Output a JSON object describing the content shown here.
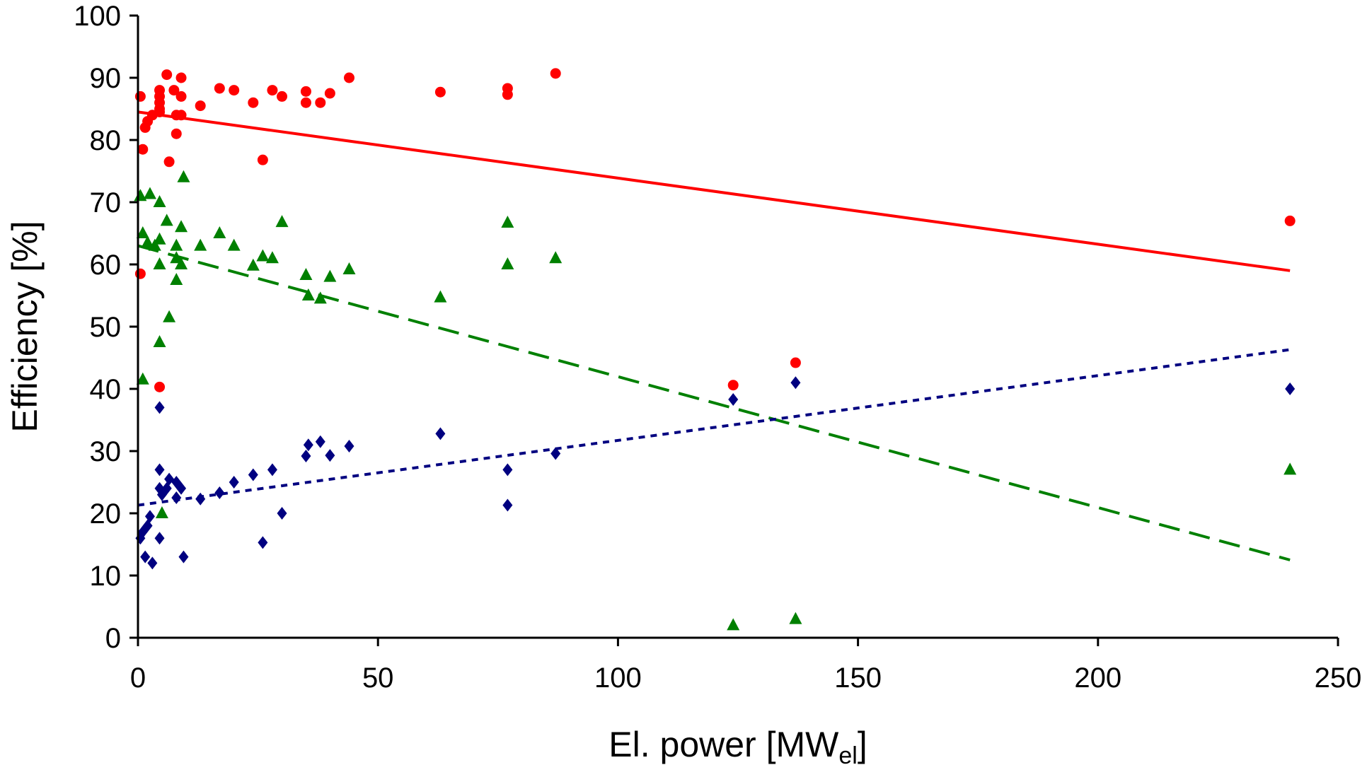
{
  "chart_data": {
    "type": "scatter",
    "title": "",
    "xlabel_main": "El. power [MW",
    "xlabel_sub": "el",
    "xlabel_end": "]",
    "ylabel": "Efficiency [%]",
    "xlim": [
      0,
      250
    ],
    "ylim": [
      0,
      100
    ],
    "x_ticks": [
      0,
      50,
      100,
      150,
      200,
      250
    ],
    "y_ticks": [
      0,
      10,
      20,
      30,
      40,
      50,
      60,
      70,
      80,
      90,
      100
    ],
    "grid": false,
    "legend": "none",
    "series": [
      {
        "marker": "circle",
        "color": "#ff0000",
        "points": [
          [
            0.5,
            87
          ],
          [
            1,
            78.5
          ],
          [
            0.5,
            58.5
          ],
          [
            1.5,
            82
          ],
          [
            2,
            83
          ],
          [
            3,
            84
          ],
          [
            4.5,
            88
          ],
          [
            4.5,
            87
          ],
          [
            4.5,
            86
          ],
          [
            4.5,
            85
          ],
          [
            4.5,
            84.5
          ],
          [
            4.5,
            40.3
          ],
          [
            6,
            90.5
          ],
          [
            6.5,
            76.5
          ],
          [
            7.5,
            88
          ],
          [
            8,
            84
          ],
          [
            8,
            81
          ],
          [
            9,
            90
          ],
          [
            9,
            87
          ],
          [
            9,
            84
          ],
          [
            13,
            85.5
          ],
          [
            17,
            88.3
          ],
          [
            20,
            88
          ],
          [
            24,
            86
          ],
          [
            26,
            76.8
          ],
          [
            28,
            88
          ],
          [
            30,
            87
          ],
          [
            35,
            87.8
          ],
          [
            35,
            86
          ],
          [
            38,
            86
          ],
          [
            40,
            87.5
          ],
          [
            44,
            90
          ],
          [
            63,
            87.7
          ],
          [
            77,
            88.3
          ],
          [
            77,
            87.3
          ],
          [
            87,
            90.7
          ],
          [
            124,
            40.6
          ],
          [
            137,
            44.2
          ],
          [
            240,
            67
          ]
        ]
      },
      {
        "marker": "triangle",
        "color": "#008000",
        "points": [
          [
            0.5,
            71
          ],
          [
            1,
            65
          ],
          [
            1,
            41.5
          ],
          [
            2,
            63.5
          ],
          [
            2.5,
            71.3
          ],
          [
            3.5,
            63
          ],
          [
            4.5,
            70
          ],
          [
            4.5,
            64
          ],
          [
            4.5,
            60
          ],
          [
            4.5,
            47.5
          ],
          [
            5,
            20
          ],
          [
            6,
            67
          ],
          [
            6.5,
            51.5
          ],
          [
            8,
            63
          ],
          [
            8,
            61
          ],
          [
            8,
            57.5
          ],
          [
            9,
            66
          ],
          [
            9,
            60
          ],
          [
            9.5,
            74
          ],
          [
            13,
            63
          ],
          [
            17,
            65
          ],
          [
            20,
            63
          ],
          [
            24,
            59.8
          ],
          [
            26,
            61.3
          ],
          [
            28,
            61
          ],
          [
            30,
            66.8
          ],
          [
            35,
            58.3
          ],
          [
            35.5,
            55
          ],
          [
            38,
            54.5
          ],
          [
            40,
            58
          ],
          [
            44,
            59.2
          ],
          [
            63,
            54.7
          ],
          [
            77,
            66.7
          ],
          [
            77,
            60
          ],
          [
            87,
            61
          ],
          [
            124,
            2
          ],
          [
            137,
            3
          ],
          [
            240,
            27
          ]
        ]
      },
      {
        "marker": "diamond",
        "color": "#000080",
        "points": [
          [
            0.5,
            16
          ],
          [
            1,
            17
          ],
          [
            1.5,
            13
          ],
          [
            2,
            18
          ],
          [
            2.5,
            19.5
          ],
          [
            3,
            12
          ],
          [
            4.5,
            37
          ],
          [
            4.5,
            27
          ],
          [
            4.5,
            24
          ],
          [
            4.5,
            16
          ],
          [
            5,
            23
          ],
          [
            6,
            24
          ],
          [
            6.5,
            25.5
          ],
          [
            8,
            25
          ],
          [
            8,
            22.5
          ],
          [
            9,
            24
          ],
          [
            9.5,
            13
          ],
          [
            13,
            22.3
          ],
          [
            17,
            23.3
          ],
          [
            20,
            25
          ],
          [
            24,
            26.2
          ],
          [
            26,
            15.3
          ],
          [
            28,
            27
          ],
          [
            30,
            20
          ],
          [
            35,
            29.2
          ],
          [
            35.5,
            31
          ],
          [
            38,
            31.5
          ],
          [
            40,
            29.3
          ],
          [
            44,
            30.8
          ],
          [
            63,
            32.8
          ],
          [
            77,
            27
          ],
          [
            77,
            21.3
          ],
          [
            87,
            29.6
          ],
          [
            124,
            38.3
          ],
          [
            137,
            41
          ],
          [
            240,
            40
          ]
        ]
      }
    ],
    "trendlines": [
      {
        "color": "#ff0000",
        "style": "solid",
        "from": [
          0,
          84.5
        ],
        "to": [
          240,
          59
        ]
      },
      {
        "color": "#008000",
        "style": "long-dash",
        "from": [
          0,
          63
        ],
        "to": [
          240,
          12.5
        ]
      },
      {
        "color": "#000080",
        "style": "dotted",
        "from": [
          0,
          21.3
        ],
        "to": [
          240,
          46.3
        ]
      }
    ]
  }
}
